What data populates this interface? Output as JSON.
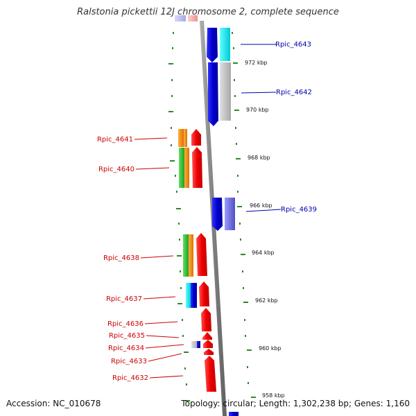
{
  "header": {
    "title": "Ralstonia pickettii 12J chromosome 2, complete sequence"
  },
  "footer": {
    "accession": "Accession: NC_010678",
    "summary": "Topology: circular; Length: 1,302,238 bp; Genes: 1,160"
  },
  "scale": {
    "tick_labels": [
      "972 kbp",
      "970 kbp",
      "968 kbp",
      "966 kbp",
      "964 kbp",
      "962 kbp",
      "960 kbp",
      "958 kbp"
    ]
  },
  "genes": [
    {
      "label": "Rpic_4643",
      "strand": "right",
      "color": "#0000aa"
    },
    {
      "label": "Rpic_4642",
      "strand": "right",
      "color": "#0000aa"
    },
    {
      "label": "Rpic_4641",
      "strand": "left",
      "color": "#cc0000"
    },
    {
      "label": "Rpic_4640",
      "strand": "left",
      "color": "#cc0000"
    },
    {
      "label": "Rpic_4639",
      "strand": "right",
      "color": "#0000aa"
    },
    {
      "label": "Rpic_4638",
      "strand": "left",
      "color": "#cc0000"
    },
    {
      "label": "Rpic_4637",
      "strand": "left",
      "color": "#cc0000"
    },
    {
      "label": "Rpic_4636",
      "strand": "left",
      "color": "#cc0000"
    },
    {
      "label": "Rpic_4635",
      "strand": "left",
      "color": "#cc0000"
    },
    {
      "label": "Rpic_4634",
      "strand": "left",
      "color": "#cc0000"
    },
    {
      "label": "Rpic_4633",
      "strand": "left",
      "color": "#cc0000"
    },
    {
      "label": "Rpic_4632",
      "strand": "left",
      "color": "#cc0000"
    }
  ],
  "colors": {
    "backbone": "#888888",
    "forward_gene": "#0000dd",
    "reverse_gene": "#ee0000",
    "tick_dots": "#2a8a2a"
  }
}
